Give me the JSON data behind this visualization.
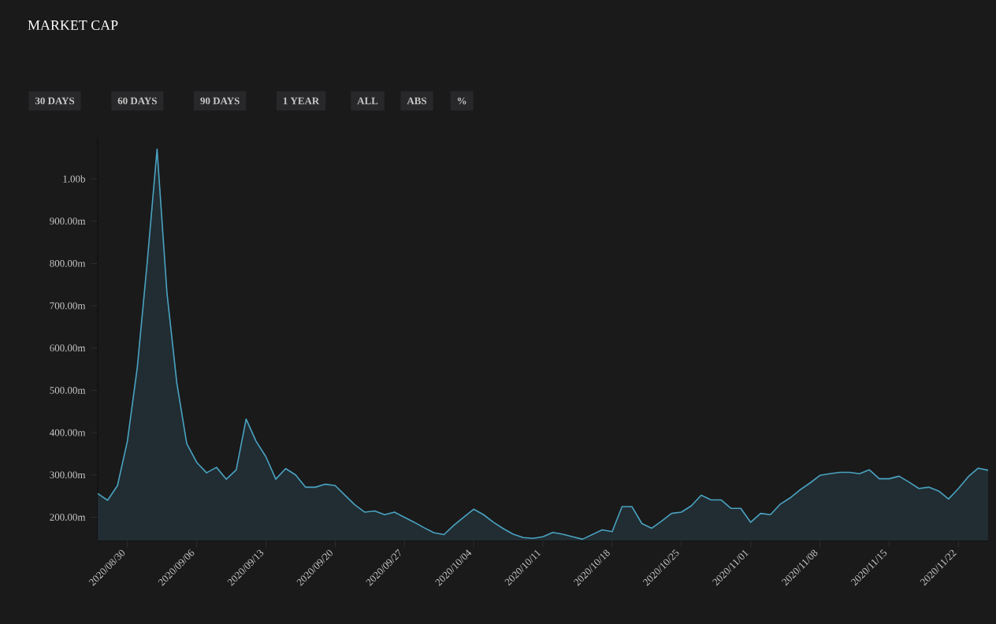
{
  "chart_data": {
    "type": "area",
    "title": "MARKET CAP",
    "annotations": [
      "30 DAYS",
      "60 DAYS",
      "90 DAYS",
      "1 YEAR",
      "ALL",
      "ABS",
      "%"
    ],
    "x": [
      "2020-08-27",
      "2020-08-28",
      "2020-08-29",
      "2020-08-30",
      "2020-08-31",
      "2020-09-01",
      "2020-09-02",
      "2020-09-03",
      "2020-09-04",
      "2020-09-05",
      "2020-09-06",
      "2020-09-07",
      "2020-09-08",
      "2020-09-09",
      "2020-09-10",
      "2020-09-11",
      "2020-09-12",
      "2020-09-13",
      "2020-09-14",
      "2020-09-15",
      "2020-09-16",
      "2020-09-17",
      "2020-09-18",
      "2020-09-19",
      "2020-09-20",
      "2020-09-21",
      "2020-09-22",
      "2020-09-23",
      "2020-09-24",
      "2020-09-25",
      "2020-09-26",
      "2020-09-27",
      "2020-09-28",
      "2020-09-29",
      "2020-09-30",
      "2020-10-01",
      "2020-10-02",
      "2020-10-03",
      "2020-10-04",
      "2020-10-05",
      "2020-10-06",
      "2020-10-07",
      "2020-10-08",
      "2020-10-09",
      "2020-10-10",
      "2020-10-11",
      "2020-10-12",
      "2020-10-13",
      "2020-10-14",
      "2020-10-15",
      "2020-10-16",
      "2020-10-17",
      "2020-10-18",
      "2020-10-19",
      "2020-10-20",
      "2020-10-21",
      "2020-10-22",
      "2020-10-23",
      "2020-10-24",
      "2020-10-25",
      "2020-10-26",
      "2020-10-27",
      "2020-10-28",
      "2020-10-29",
      "2020-10-30",
      "2020-10-31",
      "2020-11-01",
      "2020-11-02",
      "2020-11-03",
      "2020-11-04",
      "2020-11-05",
      "2020-11-06",
      "2020-11-07",
      "2020-11-08",
      "2020-11-09",
      "2020-11-10",
      "2020-11-11",
      "2020-11-12",
      "2020-11-13",
      "2020-11-14",
      "2020-11-15",
      "2020-11-16",
      "2020-11-17",
      "2020-11-18",
      "2020-11-19",
      "2020-11-20",
      "2020-11-21",
      "2020-11-22",
      "2020-11-23",
      "2020-11-24",
      "2020-11-25"
    ],
    "series": [
      {
        "color": "#4aa3c2",
        "values": [
          256000000,
          240000000,
          275000000,
          380000000,
          554000000,
          802000000,
          1070000000,
          730000000,
          517000000,
          374000000,
          330000000,
          305000000,
          318000000,
          290000000,
          312000000,
          432000000,
          380000000,
          343000000,
          290000000,
          315000000,
          300000000,
          271000000,
          271000000,
          278000000,
          275000000,
          252000000,
          229000000,
          212000000,
          215000000,
          206000000,
          212000000,
          200000000,
          188000000,
          175000000,
          163000000,
          159000000,
          181000000,
          200000000,
          219000000,
          206000000,
          188000000,
          173000000,
          160000000,
          152000000,
          150000000,
          154000000,
          164000000,
          160000000,
          154000000,
          148000000,
          159000000,
          170000000,
          166000000,
          225000000,
          225000000,
          185000000,
          174000000,
          191000000,
          209000000,
          212000000,
          227000000,
          252000000,
          241000000,
          241000000,
          221000000,
          221000000,
          188000000,
          209000000,
          206000000,
          231000000,
          246000000,
          265000000,
          281000000,
          299000000,
          303000000,
          306000000,
          306000000,
          303000000,
          312000000,
          291000000,
          291000000,
          297000000,
          283000000,
          268000000,
          271000000,
          262000000,
          243000000,
          268000000,
          296000000,
          316000000,
          311000000
        ]
      }
    ],
    "xlim": [
      "2020-08-27",
      "2020-11-25"
    ],
    "xticks": [
      {
        "value": "2020-08-30",
        "label": "2020/08/30"
      },
      {
        "value": "2020-09-06",
        "label": "2020/09/06"
      },
      {
        "value": "2020-09-13",
        "label": "2020/09/13"
      },
      {
        "value": "2020-09-20",
        "label": "2020/09/20"
      },
      {
        "value": "2020-09-27",
        "label": "2020/09/27"
      },
      {
        "value": "2020-10-04",
        "label": "2020/10/04"
      },
      {
        "value": "2020-10-11",
        "label": "2020/10/11"
      },
      {
        "value": "2020-10-18",
        "label": "2020/10/18"
      },
      {
        "value": "2020-10-25",
        "label": "2020/10/25"
      },
      {
        "value": "2020-11-01",
        "label": "2020/11/01"
      },
      {
        "value": "2020-11-08",
        "label": "2020/11/08"
      },
      {
        "value": "2020-11-15",
        "label": "2020/11/15"
      },
      {
        "value": "2020-11-22",
        "label": "2020/11/22"
      }
    ],
    "ylim": [
      145000000,
      1095000000
    ],
    "yticks": [
      {
        "value": 200000000,
        "label": "200.00m"
      },
      {
        "value": 300000000,
        "label": "300.00m"
      },
      {
        "value": 400000000,
        "label": "400.00m"
      },
      {
        "value": 500000000,
        "label": "500.00m"
      },
      {
        "value": 600000000,
        "label": "600.00m"
      },
      {
        "value": 700000000,
        "label": "700.00m"
      },
      {
        "value": 800000000,
        "label": "800.00m"
      },
      {
        "value": 900000000,
        "label": "900.00m"
      },
      {
        "value": 1000000000,
        "label": "1.00b"
      }
    ]
  }
}
